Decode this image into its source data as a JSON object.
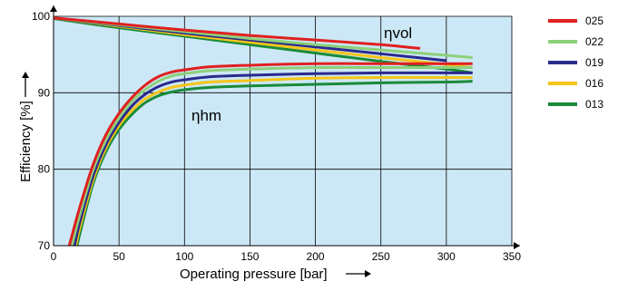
{
  "chart_data": {
    "type": "line",
    "xlabel": "Operating pressure [bar]",
    "ylabel": "Efficiency [%]",
    "xlim": [
      0,
      350
    ],
    "ylim": [
      70,
      100
    ],
    "x_ticks": [
      0,
      50,
      100,
      150,
      200,
      250,
      300,
      350
    ],
    "y_ticks": [
      70,
      80,
      90,
      100
    ],
    "grid": true,
    "background_color": "#cce8f6",
    "legend_position": "right",
    "annotations": [
      {
        "text": "ηvol",
        "x": 255,
        "y": 98
      },
      {
        "text": "ηhm",
        "x": 105,
        "y": 87
      }
    ],
    "series": [
      {
        "name": "025",
        "color": "#e02020",
        "volumetric": {
          "x": [
            0,
            50,
            100,
            150,
            200,
            250,
            280
          ],
          "y": [
            99.8,
            99.0,
            98.2,
            97.5,
            96.9,
            96.3,
            95.8
          ]
        },
        "hydromechanical": {
          "x": [
            12,
            20,
            30,
            40,
            50,
            60,
            70,
            80,
            90,
            100,
            120,
            150,
            200,
            250,
            300,
            320
          ],
          "y": [
            70,
            75,
            80.5,
            84.5,
            87.3,
            89.4,
            91.0,
            92.1,
            92.7,
            93.0,
            93.4,
            93.6,
            93.8,
            93.8,
            93.8,
            93.8
          ]
        }
      },
      {
        "name": "022",
        "color": "#8dd07a",
        "volumetric": {
          "x": [
            0,
            50,
            100,
            150,
            200,
            250,
            300,
            320
          ],
          "y": [
            99.8,
            98.9,
            98.0,
            97.1,
            96.3,
            95.6,
            94.9,
            94.6
          ]
        },
        "hydromechanical": {
          "x": [
            14,
            20,
            30,
            40,
            50,
            60,
            70,
            80,
            90,
            100,
            120,
            150,
            200,
            250,
            300,
            320
          ],
          "y": [
            70,
            74.0,
            79.8,
            83.8,
            86.7,
            88.9,
            90.4,
            91.5,
            92.2,
            92.5,
            92.9,
            93.1,
            93.3,
            93.3,
            93.3,
            93.3
          ]
        }
      },
      {
        "name": "019",
        "color": "#2a2a8c",
        "volumetric": {
          "x": [
            0,
            50,
            100,
            150,
            200,
            250,
            300
          ],
          "y": [
            99.8,
            98.8,
            97.8,
            96.9,
            96.0,
            95.1,
            94.2
          ]
        },
        "hydromechanical": {
          "x": [
            16,
            20,
            30,
            40,
            50,
            60,
            70,
            80,
            90,
            100,
            120,
            150,
            200,
            250,
            300,
            320
          ],
          "y": [
            70,
            73.0,
            79.0,
            83.2,
            86.1,
            88.3,
            89.8,
            90.8,
            91.4,
            91.7,
            92.1,
            92.3,
            92.5,
            92.6,
            92.6,
            92.6
          ]
        }
      },
      {
        "name": "016",
        "color": "#f5c518",
        "volumetric": {
          "x": [
            0,
            50,
            100,
            150,
            200,
            250,
            300,
            320
          ],
          "y": [
            99.8,
            98.7,
            97.6,
            96.6,
            95.6,
            94.6,
            93.7,
            93.3
          ]
        },
        "hydromechanical": {
          "x": [
            17,
            20,
            30,
            40,
            50,
            60,
            70,
            80,
            90,
            100,
            120,
            150,
            200,
            250,
            300,
            320
          ],
          "y": [
            70,
            72.3,
            78.5,
            82.8,
            85.7,
            87.7,
            89.2,
            90.1,
            90.7,
            91.0,
            91.4,
            91.6,
            91.9,
            92.0,
            92.0,
            92.0
          ]
        }
      },
      {
        "name": "013",
        "color": "#1a8a3a",
        "volumetric": {
          "x": [
            0,
            50,
            100,
            150,
            200,
            250,
            300,
            320
          ],
          "y": [
            99.7,
            98.5,
            97.4,
            96.3,
            95.2,
            94.1,
            93.1,
            92.6
          ]
        },
        "hydromechanical": {
          "x": [
            18,
            20,
            30,
            40,
            50,
            60,
            70,
            80,
            90,
            100,
            120,
            150,
            200,
            250,
            300,
            320
          ],
          "y": [
            70,
            71.5,
            78.0,
            82.3,
            85.2,
            87.2,
            88.7,
            89.6,
            90.1,
            90.4,
            90.7,
            90.9,
            91.1,
            91.3,
            91.4,
            91.5
          ]
        }
      }
    ]
  }
}
